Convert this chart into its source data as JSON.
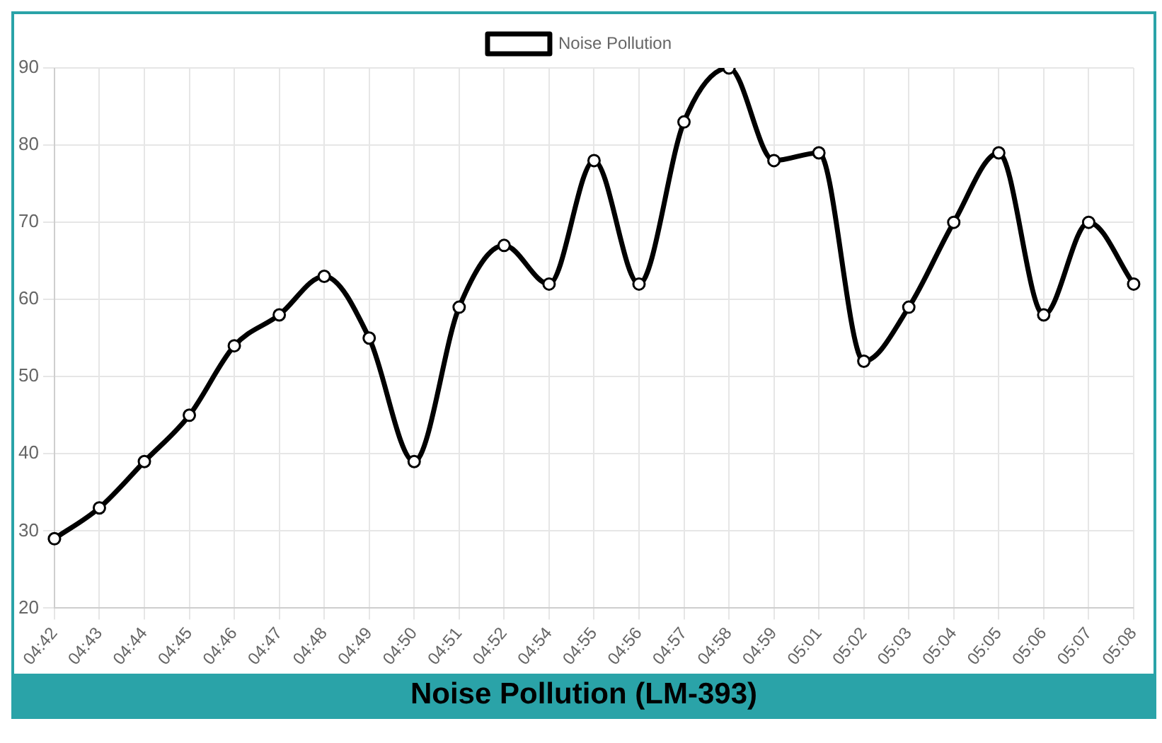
{
  "chart_data": {
    "type": "line",
    "title": "Noise Pollution (LM-393)",
    "categories": [
      "04:42",
      "04:43",
      "04:44",
      "04:45",
      "04:46",
      "04:47",
      "04:48",
      "04:49",
      "04:50",
      "04:51",
      "04:52",
      "04:54",
      "04:55",
      "04:56",
      "04:57",
      "04:58",
      "04:59",
      "05:01",
      "05:02",
      "05:03",
      "05:04",
      "05:05",
      "05:06",
      "05:07",
      "05:08"
    ],
    "series": [
      {
        "name": "Noise Pollution",
        "color": "#000000",
        "values": [
          29,
          33,
          39,
          45,
          54,
          58,
          63,
          55,
          39,
          59,
          67,
          62,
          78,
          62,
          83,
          90,
          78,
          79,
          52,
          59,
          70,
          79,
          58,
          70,
          62
        ]
      }
    ],
    "ylim": [
      20,
      90
    ],
    "yticks": [
      20,
      30,
      40,
      50,
      60,
      70,
      80,
      90
    ],
    "grid": true,
    "legend": "top",
    "marker": "circle",
    "line_style": "solid"
  }
}
